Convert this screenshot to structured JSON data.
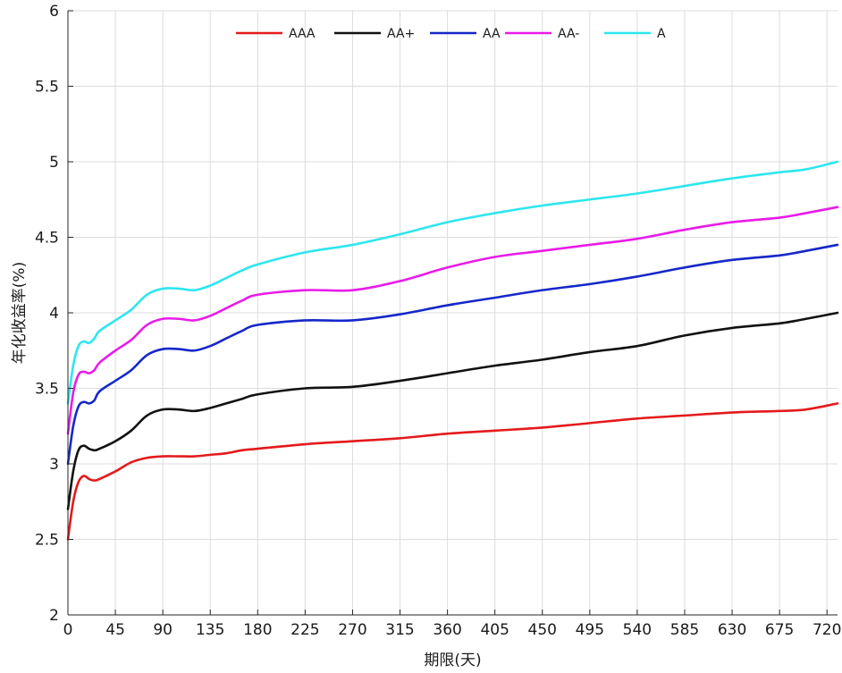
{
  "chart_data": {
    "type": "line",
    "xlabel": "期限(天)",
    "ylabel": "年化收益率(%)",
    "xlim": [
      0,
      730
    ],
    "ylim": [
      2,
      6
    ],
    "xticks": [
      0,
      45,
      90,
      135,
      180,
      225,
      270,
      315,
      360,
      405,
      450,
      495,
      540,
      585,
      630,
      675,
      720
    ],
    "yticks": [
      2,
      2.5,
      3,
      3.5,
      4,
      4.5,
      5,
      5.5,
      6
    ],
    "ytick_labels": [
      "2",
      "2.5",
      "3",
      "3.5",
      "4",
      "4.5",
      "5",
      "5.5",
      "6"
    ],
    "grid": true,
    "legend_position": "top",
    "series": [
      {
        "name": "AAA",
        "color": "#e41a1c",
        "x": [
          0,
          5,
          10,
          15,
          20,
          25,
          30,
          45,
          60,
          75,
          90,
          105,
          120,
          135,
          150,
          165,
          180,
          225,
          270,
          315,
          360,
          405,
          450,
          495,
          540,
          585,
          630,
          675,
          700,
          730
        ],
        "y": [
          2.5,
          2.75,
          2.88,
          2.92,
          2.9,
          2.89,
          2.9,
          2.95,
          3.01,
          3.04,
          3.05,
          3.05,
          3.05,
          3.06,
          3.07,
          3.09,
          3.1,
          3.13,
          3.15,
          3.17,
          3.2,
          3.22,
          3.24,
          3.27,
          3.3,
          3.32,
          3.34,
          3.35,
          3.36,
          3.4
        ]
      },
      {
        "name": "AA+",
        "color": "#111111",
        "x": [
          0,
          5,
          10,
          15,
          20,
          25,
          30,
          45,
          60,
          75,
          90,
          105,
          120,
          135,
          150,
          165,
          180,
          225,
          270,
          315,
          360,
          405,
          450,
          495,
          540,
          585,
          630,
          675,
          700,
          730
        ],
        "y": [
          2.7,
          2.95,
          3.09,
          3.12,
          3.1,
          3.09,
          3.1,
          3.15,
          3.22,
          3.32,
          3.36,
          3.36,
          3.35,
          3.37,
          3.4,
          3.43,
          3.46,
          3.5,
          3.51,
          3.55,
          3.6,
          3.65,
          3.69,
          3.74,
          3.78,
          3.85,
          3.9,
          3.93,
          3.96,
          4.0
        ]
      },
      {
        "name": "AA",
        "color": "#1528c9",
        "x": [
          0,
          5,
          10,
          15,
          20,
          25,
          30,
          45,
          60,
          75,
          90,
          105,
          120,
          135,
          150,
          165,
          180,
          225,
          270,
          315,
          360,
          405,
          450,
          495,
          540,
          585,
          630,
          675,
          700,
          730
        ],
        "y": [
          3.0,
          3.25,
          3.38,
          3.41,
          3.4,
          3.42,
          3.48,
          3.55,
          3.62,
          3.72,
          3.76,
          3.76,
          3.75,
          3.78,
          3.83,
          3.88,
          3.92,
          3.95,
          3.95,
          3.99,
          4.05,
          4.1,
          4.15,
          4.19,
          4.24,
          4.3,
          4.35,
          4.38,
          4.41,
          4.45
        ]
      },
      {
        "name": "AA-",
        "color": "#e81be8",
        "x": [
          0,
          5,
          10,
          15,
          20,
          25,
          30,
          45,
          60,
          75,
          90,
          105,
          120,
          135,
          150,
          165,
          180,
          225,
          270,
          315,
          360,
          405,
          450,
          495,
          540,
          585,
          630,
          675,
          700,
          730
        ],
        "y": [
          3.2,
          3.47,
          3.59,
          3.61,
          3.6,
          3.62,
          3.67,
          3.75,
          3.82,
          3.92,
          3.96,
          3.96,
          3.95,
          3.98,
          4.03,
          4.08,
          4.12,
          4.15,
          4.15,
          4.21,
          4.3,
          4.37,
          4.41,
          4.45,
          4.49,
          4.55,
          4.6,
          4.63,
          4.66,
          4.7
        ]
      },
      {
        "name": "A",
        "color": "#2de6ee",
        "x": [
          0,
          5,
          10,
          15,
          20,
          25,
          30,
          45,
          60,
          75,
          90,
          105,
          120,
          135,
          150,
          165,
          180,
          225,
          270,
          315,
          360,
          405,
          450,
          495,
          540,
          585,
          630,
          675,
          700,
          730
        ],
        "y": [
          3.4,
          3.65,
          3.78,
          3.81,
          3.8,
          3.83,
          3.88,
          3.95,
          4.02,
          4.12,
          4.16,
          4.16,
          4.15,
          4.18,
          4.23,
          4.28,
          4.32,
          4.4,
          4.45,
          4.52,
          4.6,
          4.66,
          4.71,
          4.75,
          4.79,
          4.84,
          4.89,
          4.93,
          4.95,
          5.0
        ]
      }
    ]
  }
}
